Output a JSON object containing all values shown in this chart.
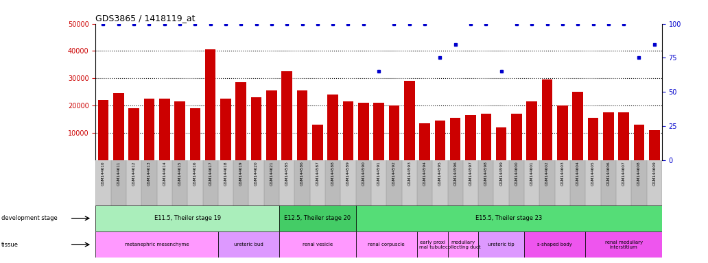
{
  "title": "GDS3865 / 1418119_at",
  "samples": [
    "GSM144610",
    "GSM144611",
    "GSM144612",
    "GSM144613",
    "GSM144614",
    "GSM144615",
    "GSM144616",
    "GSM144617",
    "GSM144618",
    "GSM144619",
    "GSM144620",
    "GSM144621",
    "GSM144585",
    "GSM144586",
    "GSM144587",
    "GSM144588",
    "GSM144589",
    "GSM144590",
    "GSM144591",
    "GSM144592",
    "GSM144593",
    "GSM144594",
    "GSM144595",
    "GSM144596",
    "GSM144597",
    "GSM144598",
    "GSM144599",
    "GSM144600",
    "GSM144601",
    "GSM144602",
    "GSM144603",
    "GSM144604",
    "GSM144605",
    "GSM144606",
    "GSM144607",
    "GSM144608",
    "GSM144609"
  ],
  "counts": [
    22000,
    24500,
    19000,
    22500,
    22500,
    21500,
    19000,
    40500,
    22500,
    28500,
    23000,
    25500,
    32500,
    25500,
    13000,
    24000,
    21500,
    21000,
    21000,
    20000,
    29000,
    13500,
    14500,
    15500,
    16500,
    17000,
    12000,
    17000,
    21500,
    29500,
    20000,
    25000,
    15500,
    17500,
    17500,
    13000,
    11000
  ],
  "percentiles": [
    100,
    100,
    100,
    100,
    100,
    100,
    100,
    100,
    100,
    100,
    100,
    100,
    100,
    100,
    100,
    100,
    100,
    100,
    65,
    100,
    100,
    100,
    75,
    85,
    100,
    100,
    65,
    100,
    100,
    100,
    100,
    100,
    100,
    100,
    100,
    75,
    85
  ],
  "ylim_left": [
    0,
    50000
  ],
  "ylim_right": [
    0,
    100
  ],
  "yticks_left": [
    10000,
    20000,
    30000,
    40000,
    50000
  ],
  "yticks_right": [
    0,
    25,
    50,
    75,
    100
  ],
  "bar_color": "#cc0000",
  "dot_color": "#0000cc",
  "background_color": "#ffffff",
  "gray_bg": "#cccccc",
  "dev_stage_groups": [
    {
      "label": "E11.5, Theiler stage 19",
      "start": 0,
      "end": 11,
      "color": "#aaeebb"
    },
    {
      "label": "E12.5, Theiler stage 20",
      "start": 12,
      "end": 16,
      "color": "#44cc66"
    },
    {
      "label": "E15.5, Theiler stage 23",
      "start": 17,
      "end": 36,
      "color": "#55dd77"
    }
  ],
  "tissue_groups": [
    {
      "label": "metanephric mesenchyme",
      "start": 0,
      "end": 7,
      "color": "#ff99ff"
    },
    {
      "label": "ureteric bud",
      "start": 8,
      "end": 11,
      "color": "#dd99ff"
    },
    {
      "label": "renal vesicle",
      "start": 12,
      "end": 16,
      "color": "#ff99ff"
    },
    {
      "label": "renal corpuscle",
      "start": 17,
      "end": 20,
      "color": "#ff99ff"
    },
    {
      "label": "early proximal tubule",
      "start": 21,
      "end": 22,
      "color": "#ff99ff"
    },
    {
      "label": "medullary collecting duct",
      "start": 23,
      "end": 24,
      "color": "#ff99ff"
    },
    {
      "label": "ureteric tip",
      "start": 25,
      "end": 27,
      "color": "#dd99ff"
    },
    {
      "label": "s-shaped body",
      "start": 28,
      "end": 31,
      "color": "#ee55ee"
    },
    {
      "label": "renal medullary\ninterstitium",
      "start": 32,
      "end": 36,
      "color": "#ee55ee"
    }
  ],
  "tissue_labels_wrapped": {
    "early proximal tubule": "early proxi\nmal tubule",
    "medullary collecting duct": "medullary\ncollecting duct",
    "renal medullary\ninterstitium": "renal medullary\ninterstitium"
  }
}
